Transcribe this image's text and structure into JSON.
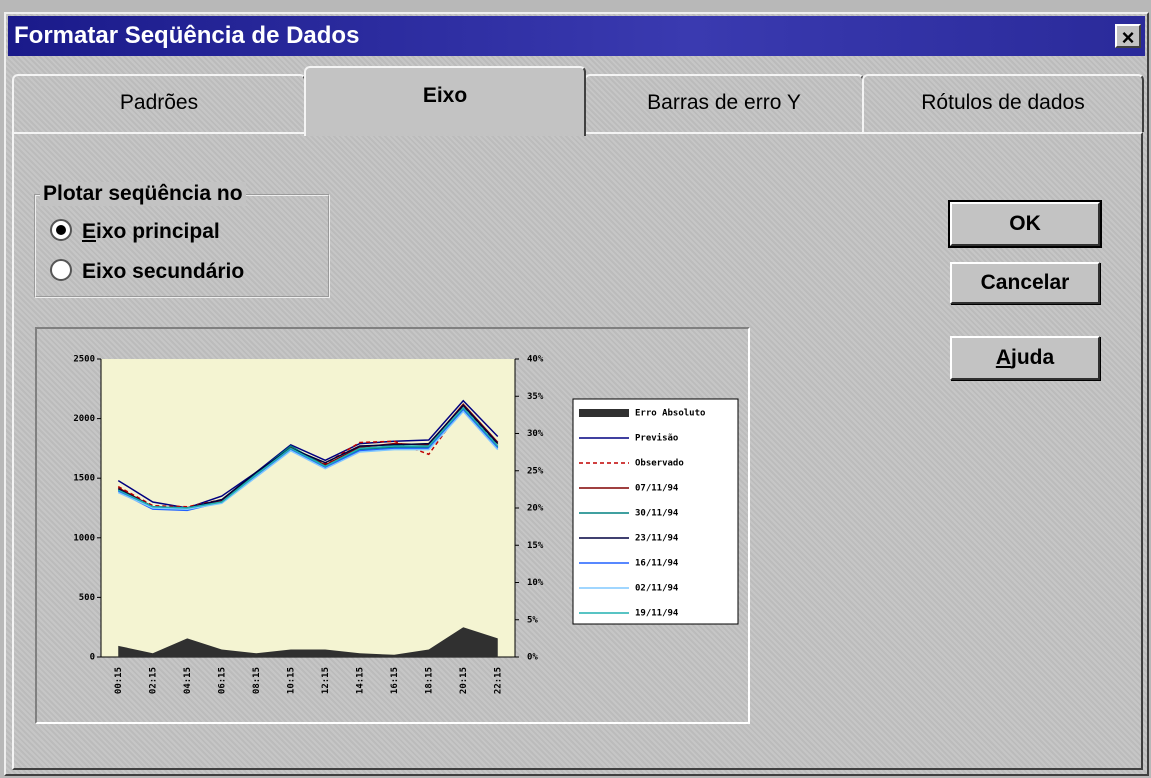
{
  "dialog": {
    "title": "Formatar Seqüência de Dados",
    "close": "×",
    "tabs": [
      "Padrões",
      "Eixo",
      "Barras de erro Y",
      "Rótulos de dados"
    ],
    "selected_tab": 1,
    "group": {
      "label": "Plotar seqüência no",
      "options": [
        "Eixo principal",
        "Eixo secundário"
      ],
      "selected": 0
    },
    "buttons": [
      "OK",
      "Cancelar",
      "Ajuda"
    ],
    "preview": {
      "type": "line",
      "categories": [
        "00:15",
        "02:15",
        "04:15",
        "06:15",
        "08:15",
        "10:15",
        "12:15",
        "14:15",
        "16:15",
        "18:15",
        "20:15",
        "22:15"
      ],
      "ylim": [
        0,
        2500
      ],
      "yticks": [
        0,
        500,
        1000,
        1500,
        2000,
        2500
      ],
      "y2lim": [
        0,
        40
      ],
      "y2ticks": [
        {
          "value": 0,
          "label": "0%"
        },
        {
          "value": 5,
          "label": "5%"
        },
        {
          "value": 10,
          "label": "10%"
        },
        {
          "value": 15,
          "label": "15%"
        },
        {
          "value": 20,
          "label": "20%"
        },
        {
          "value": 25,
          "label": "25%"
        },
        {
          "value": 30,
          "label": "30%"
        },
        {
          "value": 35,
          "label": "35%"
        },
        {
          "value": 40,
          "label": "40%"
        }
      ],
      "plot_color": "#f4f4d2",
      "series": [
        {
          "name": "Erro Absoluto",
          "color": "#303030",
          "axis": "y2",
          "area": true,
          "values": [
            1.5,
            0.5,
            2.5,
            1,
            0.5,
            1,
            1,
            0.5,
            0.3,
            1,
            4,
            2.5
          ]
        },
        {
          "name": "Previsão",
          "color": "#000080",
          "values": [
            1480,
            1300,
            1250,
            1350,
            1550,
            1780,
            1650,
            1790,
            1810,
            1820,
            2150,
            1850
          ]
        },
        {
          "name": "Observado",
          "color": "#c00000",
          "dash": true,
          "values": [
            1430,
            1270,
            1260,
            1320,
            1520,
            1750,
            1620,
            1800,
            1810,
            1700,
            2100,
            1780
          ]
        },
        {
          "name": "07/11/94",
          "color": "#800000",
          "values": [
            1420,
            1260,
            1250,
            1310,
            1530,
            1760,
            1610,
            1760,
            1790,
            1780,
            2120,
            1800
          ]
        },
        {
          "name": "30/11/94",
          "color": "#008080",
          "values": [
            1400,
            1250,
            1240,
            1300,
            1540,
            1770,
            1600,
            1740,
            1760,
            1760,
            2080,
            1760
          ]
        },
        {
          "name": "23/11/94",
          "color": "#000040",
          "values": [
            1410,
            1260,
            1250,
            1320,
            1550,
            1750,
            1630,
            1770,
            1780,
            1790,
            2110,
            1790
          ]
        },
        {
          "name": "16/11/94",
          "color": "#2060ff",
          "values": [
            1390,
            1240,
            1230,
            1300,
            1520,
            1740,
            1590,
            1730,
            1750,
            1750,
            2070,
            1750
          ]
        },
        {
          "name": "02/11/94",
          "color": "#80c8ff",
          "values": [
            1380,
            1250,
            1240,
            1290,
            1510,
            1730,
            1580,
            1720,
            1740,
            1740,
            2060,
            1740
          ]
        },
        {
          "name": "19/11/94",
          "color": "#20b0b0",
          "values": [
            1400,
            1260,
            1250,
            1300,
            1530,
            1750,
            1600,
            1750,
            1770,
            1770,
            2090,
            1770
          ]
        }
      ]
    }
  }
}
